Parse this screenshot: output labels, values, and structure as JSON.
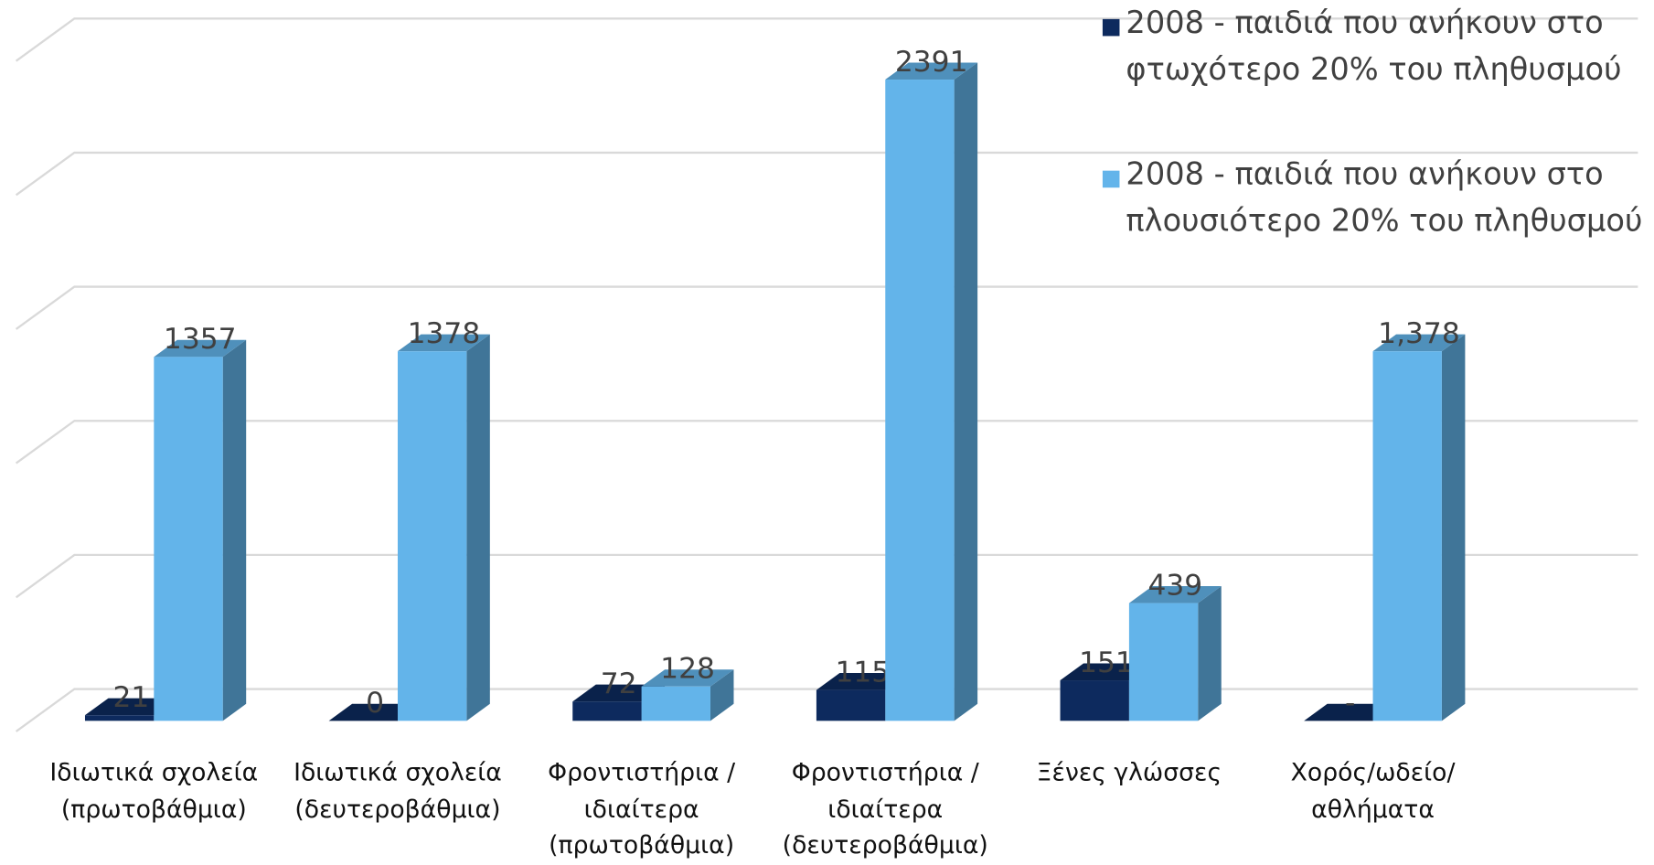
{
  "chart_data": {
    "type": "bar3d",
    "categories": [
      "Ιδιωτικά σχολεία (πρωτοβάθμια)",
      "Ιδιωτικά σχολεία (δευτεροβάθμια)",
      "Φροντιστήρια /ιδιαίτερα (πρωτοβάθμια)",
      "Φροντιστήρια /ιδιαίτερα (δευτεροβάθμια)",
      "Ξένες γλώσσες",
      "Χορός/ωδείο/ αθλήματα"
    ],
    "series": [
      {
        "name": "2008 - παιδιά που ανήκουν στο φτωχότερο 20% του πληθυσμού",
        "color": "#0d2a5e",
        "values": [
          21,
          0,
          72,
          115,
          151,
          0
        ],
        "value_labels": [
          "21",
          "0",
          "72",
          "115",
          "151",
          "-"
        ]
      },
      {
        "name": "2008 - παιδιά που ανήκουν στο πλουσιότερο 20% του πληθυσμού",
        "color": "#63b4ea",
        "values": [
          1357,
          1378,
          128,
          2391,
          439,
          1378
        ],
        "value_labels": [
          "1357",
          "1378",
          "128",
          "2391",
          "439",
          "1,378"
        ]
      }
    ],
    "ylim": [
      0,
      2500
    ],
    "yticks": [
      0,
      500,
      1000,
      1500,
      2000,
      2500
    ],
    "grid": true,
    "legend": "top-right"
  }
}
